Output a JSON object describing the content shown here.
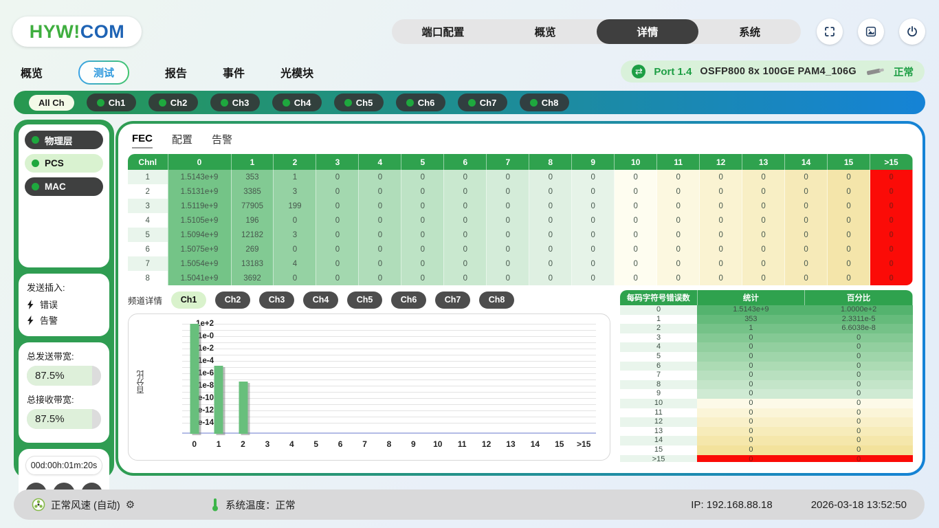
{
  "header": {
    "logo": {
      "p1": "HYW",
      "p2": "!",
      "p3": "COM"
    },
    "nav": [
      {
        "label": "端口配置",
        "active": false
      },
      {
        "label": "概览",
        "active": false
      },
      {
        "label": "详情",
        "active": true
      },
      {
        "label": "系统",
        "active": false
      }
    ]
  },
  "subnav": {
    "tabs": [
      {
        "label": "概览",
        "active": false
      },
      {
        "label": "测试",
        "active": true
      },
      {
        "label": "报告",
        "active": false
      },
      {
        "label": "事件",
        "active": false
      },
      {
        "label": "光模块",
        "active": false
      }
    ],
    "port": {
      "name": "Port 1.4",
      "desc": "OSFP800 8x 100GE PAM4_106G",
      "status": "正常"
    }
  },
  "channels": {
    "all": "All Ch",
    "items": [
      "Ch1",
      "Ch2",
      "Ch3",
      "Ch4",
      "Ch5",
      "Ch6",
      "Ch7",
      "Ch8"
    ]
  },
  "sidebar": {
    "layers": [
      {
        "label": "物理层",
        "active": false
      },
      {
        "label": "PCS",
        "active": true
      },
      {
        "label": "MAC",
        "active": false
      }
    ],
    "insert": {
      "title": "发送插入:",
      "items": [
        "错误",
        "告警"
      ]
    },
    "bandwidth": {
      "tx_label": "总发送带宽:",
      "tx": "87.5%",
      "rx_label": "总接收带宽:",
      "rx": "87.5%"
    },
    "timer": "00d:00h:01m:20s"
  },
  "main": {
    "tabs": [
      {
        "label": "FEC",
        "active": true
      },
      {
        "label": "配置",
        "active": false
      },
      {
        "label": "告警",
        "active": false
      }
    ],
    "fec_table": {
      "headers": [
        "Chnl",
        "0",
        "1",
        "2",
        "3",
        "4",
        "5",
        "6",
        "7",
        "8",
        "9",
        "10",
        "11",
        "12",
        "13",
        "14",
        "15",
        ">15"
      ],
      "rows": [
        [
          "1",
          "1.5143e+9",
          "353",
          "1",
          "0",
          "0",
          "0",
          "0",
          "0",
          "0",
          "0",
          "0",
          "0",
          "0",
          "0",
          "0",
          "0",
          "0"
        ],
        [
          "2",
          "1.5131e+9",
          "3385",
          "3",
          "0",
          "0",
          "0",
          "0",
          "0",
          "0",
          "0",
          "0",
          "0",
          "0",
          "0",
          "0",
          "0",
          "0"
        ],
        [
          "3",
          "1.5119e+9",
          "77905",
          "199",
          "0",
          "0",
          "0",
          "0",
          "0",
          "0",
          "0",
          "0",
          "0",
          "0",
          "0",
          "0",
          "0",
          "0"
        ],
        [
          "4",
          "1.5105e+9",
          "196",
          "0",
          "0",
          "0",
          "0",
          "0",
          "0",
          "0",
          "0",
          "0",
          "0",
          "0",
          "0",
          "0",
          "0",
          "0"
        ],
        [
          "5",
          "1.5094e+9",
          "12182",
          "3",
          "0",
          "0",
          "0",
          "0",
          "0",
          "0",
          "0",
          "0",
          "0",
          "0",
          "0",
          "0",
          "0",
          "0"
        ],
        [
          "6",
          "1.5075e+9",
          "269",
          "0",
          "0",
          "0",
          "0",
          "0",
          "0",
          "0",
          "0",
          "0",
          "0",
          "0",
          "0",
          "0",
          "0",
          "0"
        ],
        [
          "7",
          "1.5054e+9",
          "13183",
          "4",
          "0",
          "0",
          "0",
          "0",
          "0",
          "0",
          "0",
          "0",
          "0",
          "0",
          "0",
          "0",
          "0",
          "0"
        ],
        [
          "8",
          "1.5041e+9",
          "3692",
          "0",
          "0",
          "0",
          "0",
          "0",
          "0",
          "0",
          "0",
          "0",
          "0",
          "0",
          "0",
          "0",
          "0",
          "0"
        ]
      ]
    },
    "detail": {
      "label": "频道详情",
      "tabs": [
        "Ch1",
        "Ch2",
        "Ch3",
        "Ch4",
        "Ch5",
        "Ch6",
        "Ch7",
        "Ch8"
      ],
      "active_index": 0
    },
    "stats_table": {
      "headers": [
        "每码字符号错误数",
        "统计",
        "百分比"
      ],
      "rows": [
        [
          "0",
          "1.5143e+9",
          "1.0000e+2"
        ],
        [
          "1",
          "353",
          "2.3311e-5"
        ],
        [
          "2",
          "1",
          "6.6038e-8"
        ],
        [
          "3",
          "0",
          "0"
        ],
        [
          "4",
          "0",
          "0"
        ],
        [
          "5",
          "0",
          "0"
        ],
        [
          "6",
          "0",
          "0"
        ],
        [
          "7",
          "0",
          "0"
        ],
        [
          "8",
          "0",
          "0"
        ],
        [
          "9",
          "0",
          "0"
        ],
        [
          "10",
          "0",
          "0"
        ],
        [
          "11",
          "0",
          "0"
        ],
        [
          "12",
          "0",
          "0"
        ],
        [
          "13",
          "0",
          "0"
        ],
        [
          "14",
          "0",
          "0"
        ],
        [
          "15",
          "0",
          "0"
        ],
        [
          ">15",
          "0",
          "0"
        ]
      ]
    }
  },
  "chart_data": {
    "type": "bar",
    "title": "",
    "categories": [
      "0",
      "1",
      "2",
      "3",
      "4",
      "5",
      "6",
      "7",
      "8",
      "9",
      "10",
      "11",
      "12",
      "13",
      "14",
      "15",
      ">15"
    ],
    "values": [
      100,
      2.3311e-05,
      6.6038e-08,
      0,
      0,
      0,
      0,
      0,
      0,
      0,
      0,
      0,
      0,
      0,
      0,
      0,
      0
    ],
    "xlabel": "",
    "ylabel": "百分比",
    "yscale": "log",
    "ytick_labels": [
      "1e+2",
      "1e-0",
      "1e-2",
      "1e-4",
      "1e-6",
      "1e-8",
      "1e-10",
      "1e-12",
      "1e-14"
    ],
    "ylim_exponents": [
      -15.5,
      2
    ],
    "grid": true,
    "legend": "none",
    "bar_color": "#68bf7c"
  },
  "footer": {
    "fan": "正常风速 (自动)",
    "temp": "系统温度：正常",
    "ip": "IP: 192.168.88.18",
    "datetime": "2026-03-18 13:52:50"
  },
  "colors": {
    "accent_green": "#2f9d52",
    "accent_blue": "#1583d6",
    "table_header_green": "#2fa24e",
    "alarm_red": "#fb0b07",
    "row_alt": [
      "#e9f5ec",
      "#ffffff"
    ],
    "fec_columns": [
      null,
      "#74c487",
      "#82ca93",
      "#95d2a3",
      "#a3d8af",
      "#b0ddba",
      "#bde3c5",
      "#c9e8cf",
      "#d4ecd9",
      "#dff0e2",
      "#e6f3e8",
      "#fefdf0",
      "#fcf8e0",
      "#faf3d2",
      "#f8efc5",
      "#f6eab8",
      "#f4e5aa",
      "#fb0b07"
    ],
    "stats_rows": [
      "#54b36e",
      "#65bb7b",
      "#75c288",
      "#84c994",
      "#92cf9f",
      "#9fd5aa",
      "#acdbb4",
      "#b8e0bf",
      "#c4e5c9",
      "#cfead3",
      "#fdfae8",
      "#fbf5d8",
      "#f9f0c9",
      "#f7ecba",
      "#f5e7ab",
      "#f3e29c",
      "#fb0b07"
    ]
  }
}
